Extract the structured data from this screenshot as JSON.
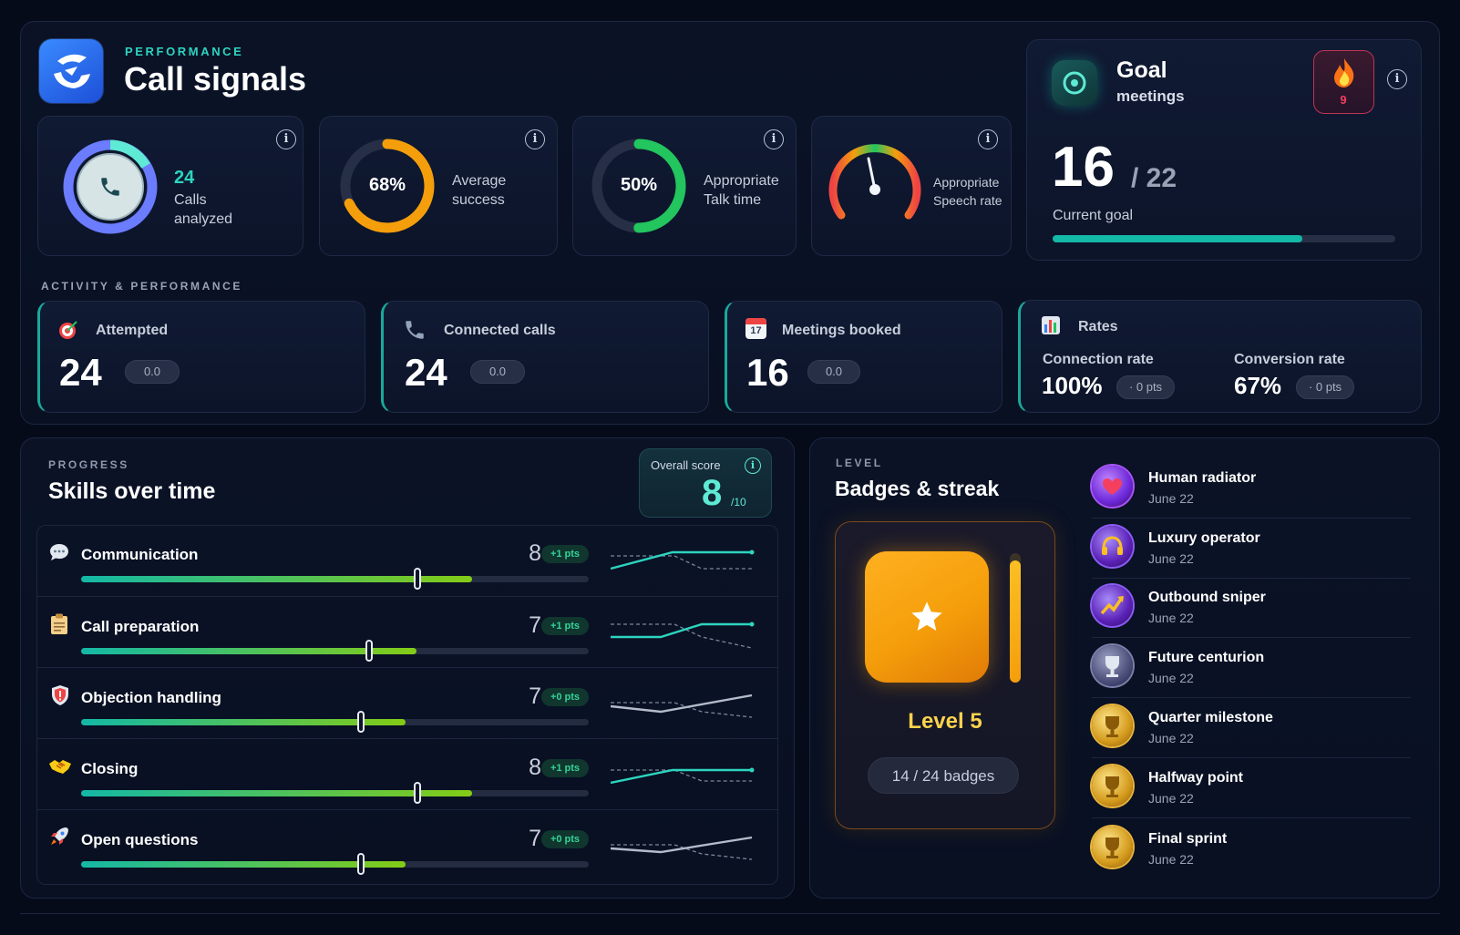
{
  "header": {
    "eyebrow": "PERFORMANCE",
    "title": "Call signals"
  },
  "signals": {
    "calls": {
      "value": "24",
      "label_line1": "Calls",
      "label_line2": "analyzed"
    },
    "average": {
      "value": "68%",
      "label_line1": "Average",
      "label_line2": "success",
      "percent": 68
    },
    "talk": {
      "value": "50%",
      "label_line1": "Appropriate",
      "label_line2": "Talk time",
      "percent": 50
    },
    "speech": {
      "label_line1": "Appropriate",
      "label_line2": "Speech rate"
    }
  },
  "goal": {
    "title": "Goal",
    "subtitle": "meetings",
    "streak": "9",
    "current": "16",
    "total": "/ 22",
    "caption": "Current goal",
    "progress": 0.73
  },
  "activity": {
    "heading": "ACTIVITY & PERFORMANCE",
    "attempted": {
      "label": "Attempted",
      "value": "24",
      "delta": "0.0"
    },
    "connected": {
      "label": "Connected calls",
      "value": "24",
      "delta": "0.0"
    },
    "meetings": {
      "label": "Meetings booked",
      "value": "16",
      "delta": "0.0",
      "calendar_day": "17"
    },
    "rates": {
      "label": "Rates",
      "connection_label": "Connection rate",
      "connection_value": "100%",
      "connection_delta": "· 0 pts",
      "conversion_label": "Conversion rate",
      "conversion_value": "67%",
      "conversion_delta": "· 0 pts"
    }
  },
  "skills": {
    "eyebrow": "PROGRESS",
    "title": "Skills over time",
    "overall_label": "Overall score",
    "overall_value": "8",
    "overall_max": "/10",
    "items": [
      {
        "name": "Communication",
        "score": "8",
        "delta": "+1 pts",
        "fill": 0.77
      },
      {
        "name": "Call preparation",
        "score": "7",
        "delta": "+1 pts",
        "fill": 0.66
      },
      {
        "name": "Objection handling",
        "score": "7",
        "delta": "+0 pts",
        "fill": 0.64
      },
      {
        "name": "Closing",
        "score": "8",
        "delta": "+1 pts",
        "fill": 0.77
      },
      {
        "name": "Open questions",
        "score": "7",
        "delta": "+0 pts",
        "fill": 0.64
      }
    ]
  },
  "badges": {
    "eyebrow": "LEVEL",
    "title": "Badges & streak",
    "level": "Level 5",
    "count": "14 / 24 badges",
    "items": [
      {
        "name": "Human radiator",
        "date": "June 22"
      },
      {
        "name": "Luxury operator",
        "date": "June 22"
      },
      {
        "name": "Outbound sniper",
        "date": "June 22"
      },
      {
        "name": "Future centurion",
        "date": "June 22"
      },
      {
        "name": "Quarter milestone",
        "date": "June 22"
      },
      {
        "name": "Halfway point",
        "date": "June 22"
      },
      {
        "name": "Final sprint",
        "date": "June 22"
      }
    ]
  },
  "colors": {
    "accent": "#14b8a6",
    "orange": "#f59e0b",
    "green": "#22c55e",
    "fire": "#ef4444"
  }
}
